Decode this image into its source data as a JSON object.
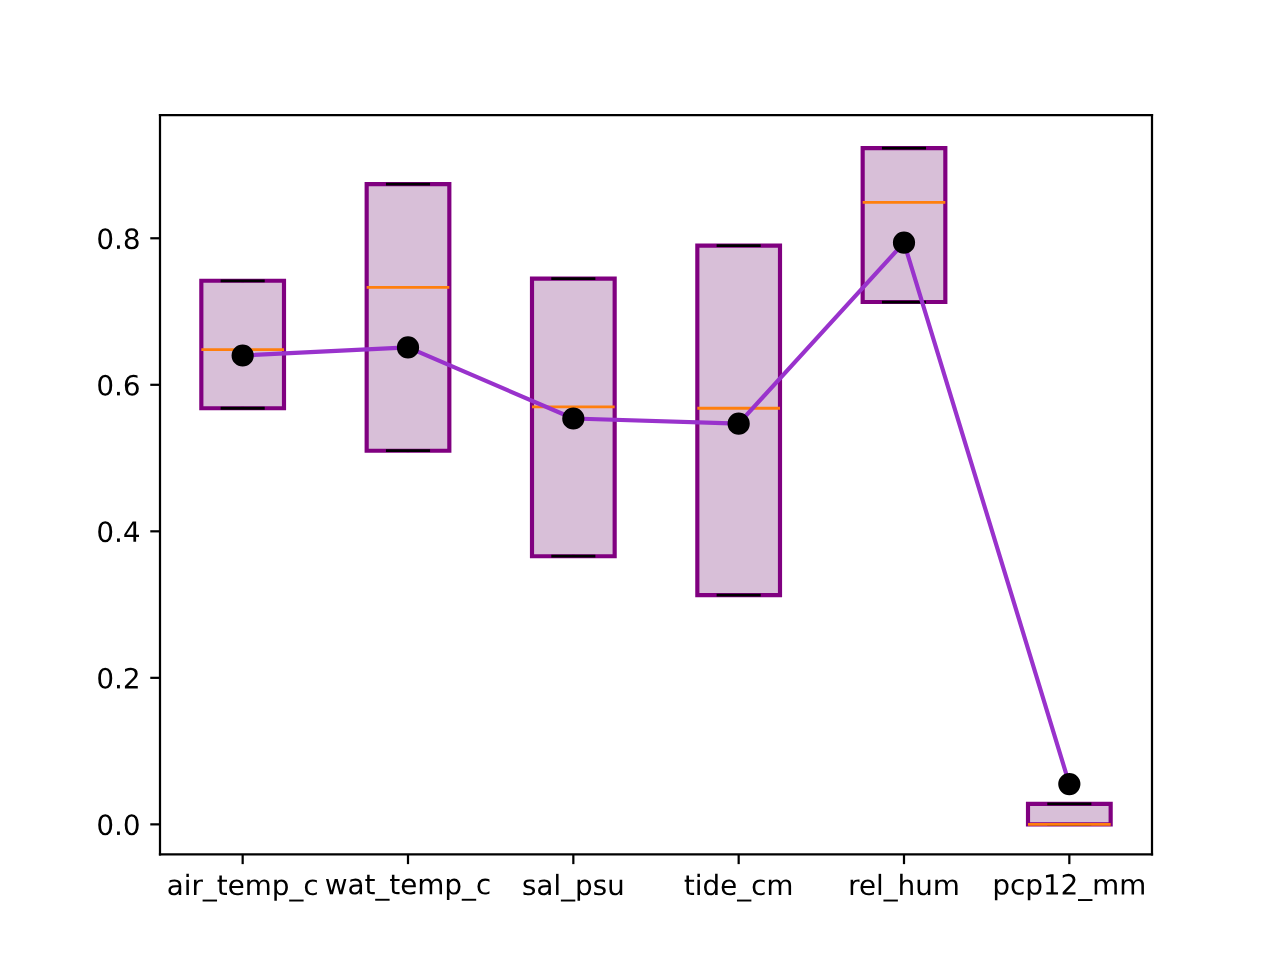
{
  "chart_data": {
    "type": "box",
    "categories": [
      "air_temp_c",
      "wat_temp_c",
      "sal_psu",
      "tide_cm",
      "rel_hum",
      "pcp12_mm"
    ],
    "color": "#d8bfd8",
    "boxes": [
      {
        "low": 0.568,
        "q1": 0.568,
        "median": 0.648,
        "q3": 0.742,
        "high": 0.742
      },
      {
        "low": 0.51,
        "q1": 0.51,
        "median": 0.733,
        "q3": 0.874,
        "high": 0.874
      },
      {
        "low": 0.366,
        "q1": 0.366,
        "median": 0.57,
        "q3": 0.745,
        "high": 0.745
      },
      {
        "low": 0.313,
        "q1": 0.313,
        "median": 0.568,
        "q3": 0.79,
        "high": 0.79
      },
      {
        "low": 0.713,
        "q1": 0.713,
        "median": 0.849,
        "q3": 0.923,
        "high": 0.923
      },
      {
        "low": 0.0,
        "q1": 0.0,
        "median": 0.0,
        "q3": 0.028,
        "high": 0.028
      }
    ],
    "series": [
      {
        "type": "line",
        "color": "#9932cc",
        "marker": "circle",
        "values": [
          0.64,
          0.651,
          0.554,
          0.547,
          0.794,
          0.055
        ]
      }
    ],
    "ylim": [
      -0.041,
      0.968
    ],
    "yticks": [
      {
        "value": 0,
        "label": "0.0"
      },
      {
        "value": 0.2,
        "label": "0.2"
      },
      {
        "value": 0.4,
        "label": "0.4"
      },
      {
        "value": 0.6,
        "label": "0.6"
      },
      {
        "value": 0.8,
        "label": "0.8"
      }
    ],
    "grid": false
  }
}
